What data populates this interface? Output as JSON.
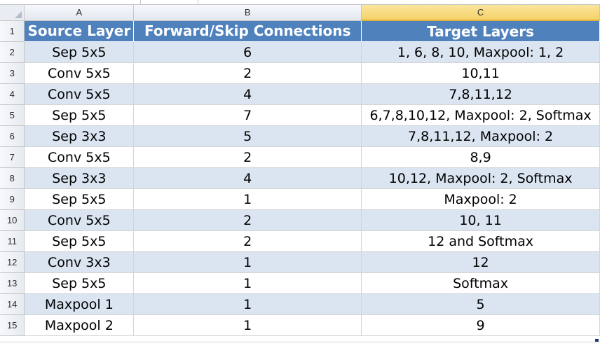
{
  "columns": [
    "A",
    "B",
    "C"
  ],
  "header": [
    "Source Layer",
    "Forward/Skip Connections",
    "Target Layers"
  ],
  "rows": [
    {
      "num": "1"
    },
    {
      "num": "2",
      "a": "Sep 5x5",
      "b": "6",
      "c": "1, 6, 8, 10, Maxpool: 1, 2"
    },
    {
      "num": "3",
      "a": "Conv 5x5",
      "b": "2",
      "c": "10,11"
    },
    {
      "num": "4",
      "a": "Conv 5x5",
      "b": "4",
      "c": "7,8,11,12"
    },
    {
      "num": "5",
      "a": "Sep 5x5",
      "b": "7",
      "c": "6,7,8,10,12, Maxpool: 2, Softmax"
    },
    {
      "num": "6",
      "a": "Sep 3x3",
      "b": "5",
      "c": "7,8,11,12, Maxpool: 2"
    },
    {
      "num": "7",
      "a": "Conv 5x5",
      "b": "2",
      "c": "8,9"
    },
    {
      "num": "8",
      "a": "Sep 3x3",
      "b": "4",
      "c": "10,12, Maxpool: 2, Softmax"
    },
    {
      "num": "9",
      "a": "Sep 5x5",
      "b": "1",
      "c": "Maxpool: 2"
    },
    {
      "num": "10",
      "a": "Conv 5x5",
      "b": "2",
      "c": "10, 11"
    },
    {
      "num": "11",
      "a": "Sep 5x5",
      "b": "2",
      "c": "12 and Softmax"
    },
    {
      "num": "12",
      "a": "Conv 3x3",
      "b": "1",
      "c": "12"
    },
    {
      "num": "13",
      "a": "Sep 5x5",
      "b": "1",
      "c": "Softmax"
    },
    {
      "num": "14",
      "a": "Maxpool 1",
      "b": "1",
      "c": "5"
    },
    {
      "num": "15",
      "a": "Maxpool 2",
      "b": "1",
      "c": "9"
    }
  ],
  "colors": {
    "header_bg": "#4f81bd",
    "band": "#dbe5f1",
    "selected_column": "#f5d26a"
  }
}
